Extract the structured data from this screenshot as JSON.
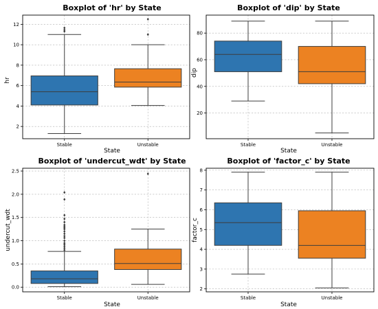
{
  "colors": {
    "stable": "#2e75b0",
    "unstable": "#ec8222"
  },
  "chart_data": [
    {
      "type": "box",
      "title": "Boxplot of 'hr' by State",
      "xlabel": "State",
      "ylabel": "hr",
      "categories": [
        "Stable",
        "Unstable"
      ],
      "ylim": [
        0.8,
        12.9
      ],
      "yticks": [
        2,
        4,
        6,
        8,
        10,
        12
      ],
      "grid": true,
      "boxes": [
        {
          "category": "Stable",
          "whisker_low": 1.3,
          "q1": 4.1,
          "median": 5.4,
          "q3": 6.95,
          "whisker_high": 11.0,
          "fliers": [
            11.3,
            11.45,
            11.65
          ]
        },
        {
          "category": "Unstable",
          "whisker_low": 4.05,
          "q1": 5.85,
          "median": 6.35,
          "q3": 7.65,
          "whisker_high": 10.0,
          "fliers": [
            11.0,
            12.5
          ]
        }
      ]
    },
    {
      "type": "box",
      "title": "Boxplot of 'dip' by State",
      "xlabel": "State",
      "ylabel": "dip",
      "categories": [
        "Stable",
        "Unstable"
      ],
      "ylim": [
        0.7,
        93.5
      ],
      "yticks": [
        20,
        40,
        60,
        80
      ],
      "grid": true,
      "boxes": [
        {
          "category": "Stable",
          "whisker_low": 29,
          "q1": 51,
          "median": 64,
          "q3": 74,
          "whisker_high": 89,
          "fliers": []
        },
        {
          "category": "Unstable",
          "whisker_low": 5,
          "q1": 42,
          "median": 51,
          "q3": 70,
          "whisker_high": 89,
          "fliers": []
        }
      ]
    },
    {
      "type": "box",
      "title": "Boxplot of 'undercut_wdt' by State",
      "xlabel": "State",
      "ylabel": "undercut_wdt",
      "categories": [
        "Stable",
        "Unstable"
      ],
      "ylim": [
        -0.1,
        2.56
      ],
      "yticks": [
        0.0,
        0.5,
        1.0,
        1.5,
        2.0,
        2.5
      ],
      "grid": true,
      "boxes": [
        {
          "category": "Stable",
          "whisker_low": 0.01,
          "q1": 0.08,
          "median": 0.18,
          "q3": 0.35,
          "whisker_high": 0.77,
          "fliers": [
            0.8,
            0.84,
            0.88,
            0.92,
            0.95,
            1.0,
            1.06,
            1.1,
            1.15,
            1.2,
            1.25,
            1.28,
            1.31,
            1.34,
            1.4,
            1.47,
            1.55,
            1.89,
            2.04
          ]
        },
        {
          "category": "Unstable",
          "whisker_low": 0.06,
          "q1": 0.38,
          "median": 0.51,
          "q3": 0.82,
          "whisker_high": 1.25,
          "fliers": [
            2.44
          ]
        }
      ]
    },
    {
      "type": "box",
      "title": "Boxplot of 'factor_c' by State",
      "xlabel": "State",
      "ylabel": "factor_c",
      "categories": [
        "Stable",
        "Unstable"
      ],
      "ylim": [
        1.85,
        8.1
      ],
      "yticks": [
        2,
        3,
        4,
        5,
        6,
        7,
        8
      ],
      "grid": true,
      "boxes": [
        {
          "category": "Stable",
          "whisker_low": 2.75,
          "q1": 4.2,
          "median": 5.35,
          "q3": 6.35,
          "whisker_high": 7.9,
          "fliers": []
        },
        {
          "category": "Unstable",
          "whisker_low": 2.05,
          "q1": 3.55,
          "median": 4.2,
          "q3": 5.95,
          "whisker_high": 7.9,
          "fliers": []
        }
      ]
    }
  ]
}
